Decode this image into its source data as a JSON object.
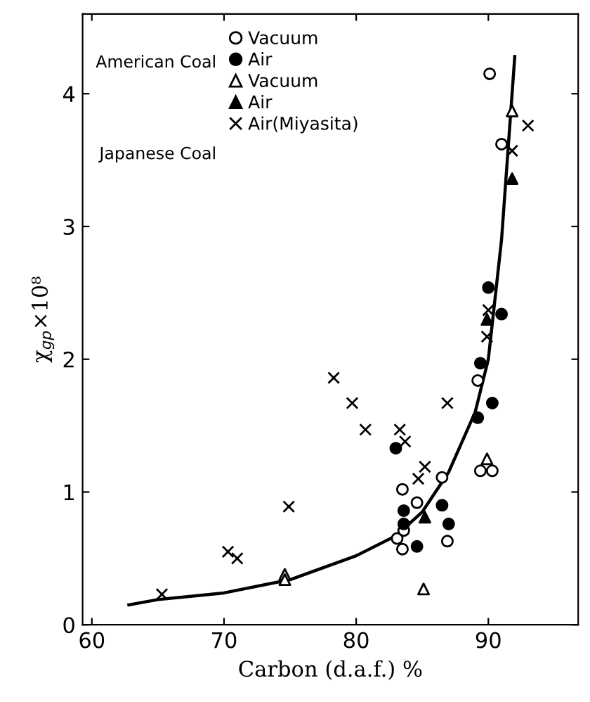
{
  "chart_data": {
    "type": "scatter",
    "xlabel": "Carbon (d.a.f.) %",
    "ylabel": "χ$_{gp}$×10⁸",
    "xlim": [
      59.3,
      96.8
    ],
    "ylim": [
      0,
      4.6
    ],
    "xticks": [
      60,
      70,
      80,
      90
    ],
    "yticks": [
      0,
      1,
      2,
      3,
      4
    ],
    "grid": false,
    "legend": "top left",
    "annotations": [
      "American Coal",
      "Japanese Coal"
    ],
    "series": [
      {
        "name": "Vacuum",
        "color": "#ffffff",
        "marker": "circle",
        "x": [
          89.2,
          89.4,
          90.3,
          83.5,
          83.1,
          83.5,
          83.6,
          84.6,
          86.5,
          86.9,
          90.1,
          91.0
        ],
        "values": [
          1.84,
          1.16,
          1.16,
          1.02,
          0.65,
          0.57,
          0.71,
          0.92,
          1.11,
          0.63,
          4.15,
          3.62
        ]
      },
      {
        "name": "Air",
        "color": "#000000",
        "marker": "circle",
        "x": [
          83.0,
          83.6,
          83.6,
          84.6,
          86.5,
          87.0,
          89.4,
          89.2,
          90.3,
          90.0,
          91.0
        ],
        "values": [
          1.33,
          0.86,
          0.76,
          0.59,
          0.9,
          0.76,
          1.97,
          1.56,
          1.67,
          2.54,
          2.34
        ]
      },
      {
        "name": "Vacuum",
        "color": "#ffffff",
        "marker": "triangle",
        "x": [
          85.1,
          89.9,
          74.6,
          74.6,
          91.8
        ],
        "values": [
          0.27,
          1.25,
          0.38,
          0.34,
          3.87
        ]
      },
      {
        "name": "Air",
        "color": "#000000",
        "marker": "triangle",
        "x": [
          85.2,
          89.9,
          91.8
        ],
        "values": [
          0.81,
          2.3,
          3.36
        ]
      },
      {
        "name": "Air(Miyasita)",
        "color": "#000000",
        "marker": "cross",
        "x": [
          65.3,
          70.3,
          71.0,
          74.9,
          78.3,
          79.7,
          80.7,
          83.3,
          83.7,
          84.7,
          85.2,
          86.9,
          89.9,
          90.0,
          93.0,
          91.8
        ],
        "values": [
          0.23,
          0.55,
          0.5,
          0.89,
          1.86,
          1.67,
          1.47,
          1.47,
          1.38,
          1.1,
          1.19,
          1.67,
          2.17,
          2.37,
          3.76,
          3.57
        ]
      },
      {
        "type": "line",
        "color": "#000000",
        "marker": "none",
        "line_style": "solid",
        "x": [
          62.8,
          65,
          70,
          75,
          80,
          83,
          85,
          87,
          89,
          90,
          91,
          92
        ],
        "values": [
          0.15,
          0.19,
          0.24,
          0.34,
          0.52,
          0.67,
          0.85,
          1.15,
          1.6,
          2.0,
          2.9,
          4.28
        ]
      }
    ]
  }
}
